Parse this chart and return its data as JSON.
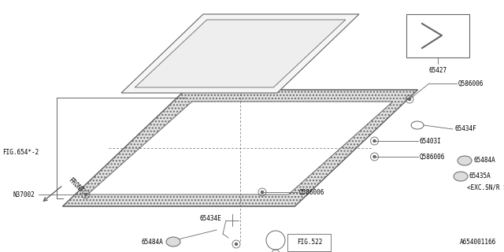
{
  "bg_color": "#ffffff",
  "line_color": "#666666",
  "text_color": "#000000",
  "bottom_code": "A654001166",
  "fig_label": "FIG.654*-2",
  "part_65427": "65427",
  "font_size": 5.5,
  "hatch_color": "#cccccc"
}
